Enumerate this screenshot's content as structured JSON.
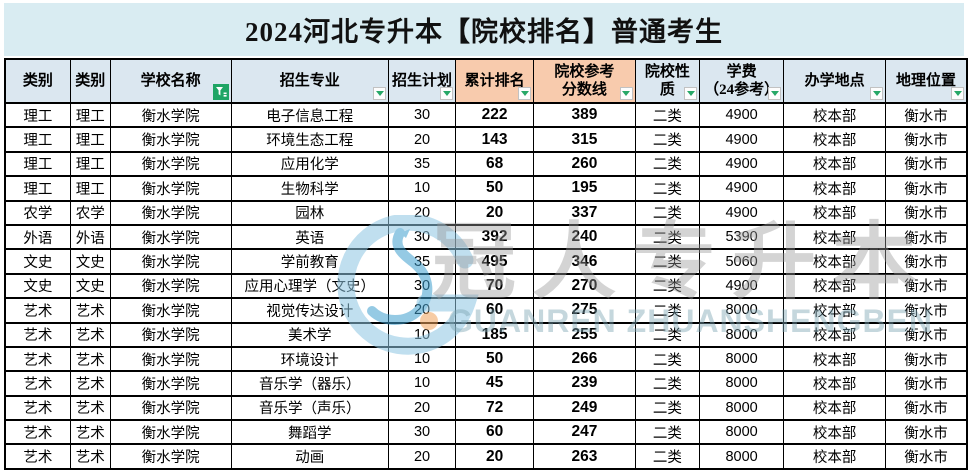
{
  "title": "2024河北专升本【院校排名】普通考生",
  "table": {
    "columns": [
      {
        "label": "类别",
        "accent": "blue",
        "filter": "none"
      },
      {
        "label": "类别",
        "accent": "blue",
        "filter": "none"
      },
      {
        "label": "学校名称",
        "accent": "blue",
        "filter": "funnel"
      },
      {
        "label": "招生专业",
        "accent": "blue",
        "filter": "arrow"
      },
      {
        "label": "招生计划",
        "accent": "blue",
        "filter": "arrow"
      },
      {
        "label": "累计排名",
        "accent": "orange",
        "filter": "arrow"
      },
      {
        "label": "院校参考\n分数线",
        "accent": "orange",
        "filter": "arrow"
      },
      {
        "label": "院校性\n质",
        "accent": "blue",
        "filter": "arrow"
      },
      {
        "label": "学费\n（24参考）",
        "accent": "blue",
        "filter": "arrow"
      },
      {
        "label": "办学地点",
        "accent": "blue",
        "filter": "arrow"
      },
      {
        "label": "地理位置",
        "accent": "blue",
        "filter": "arrow"
      }
    ],
    "rows": [
      [
        "理工",
        "理工",
        "衡水学院",
        "电子信息工程",
        "30",
        "222",
        "389",
        "二类",
        "4900",
        "校本部",
        "衡水市"
      ],
      [
        "理工",
        "理工",
        "衡水学院",
        "环境生态工程",
        "20",
        "143",
        "315",
        "二类",
        "4900",
        "校本部",
        "衡水市"
      ],
      [
        "理工",
        "理工",
        "衡水学院",
        "应用化学",
        "35",
        "68",
        "260",
        "二类",
        "4900",
        "校本部",
        "衡水市"
      ],
      [
        "理工",
        "理工",
        "衡水学院",
        "生物科学",
        "10",
        "50",
        "195",
        "二类",
        "4900",
        "校本部",
        "衡水市"
      ],
      [
        "农学",
        "农学",
        "衡水学院",
        "园林",
        "20",
        "20",
        "337",
        "二类",
        "4900",
        "校本部",
        "衡水市"
      ],
      [
        "外语",
        "外语",
        "衡水学院",
        "英语",
        "30",
        "392",
        "240",
        "二类",
        "5390",
        "校本部",
        "衡水市"
      ],
      [
        "文史",
        "文史",
        "衡水学院",
        "学前教育",
        "35",
        "495",
        "346",
        "二类",
        "5060",
        "校本部",
        "衡水市"
      ],
      [
        "文史",
        "文史",
        "衡水学院",
        "应用心理学（文史）",
        "30",
        "70",
        "270",
        "二类",
        "4900",
        "校本部",
        "衡水市"
      ],
      [
        "艺术",
        "艺术",
        "衡水学院",
        "视觉传达设计",
        "20",
        "60",
        "275",
        "二类",
        "8000",
        "校本部",
        "衡水市"
      ],
      [
        "艺术",
        "艺术",
        "衡水学院",
        "美术学",
        "10",
        "185",
        "255",
        "二类",
        "8000",
        "校本部",
        "衡水市"
      ],
      [
        "艺术",
        "艺术",
        "衡水学院",
        "环境设计",
        "10",
        "50",
        "266",
        "二类",
        "8000",
        "校本部",
        "衡水市"
      ],
      [
        "艺术",
        "艺术",
        "衡水学院",
        "音乐学（器乐）",
        "10",
        "45",
        "239",
        "二类",
        "8000",
        "校本部",
        "衡水市"
      ],
      [
        "艺术",
        "艺术",
        "衡水学院",
        "音乐学（声乐）",
        "20",
        "72",
        "249",
        "二类",
        "8000",
        "校本部",
        "衡水市"
      ],
      [
        "艺术",
        "艺术",
        "衡水学院",
        "舞蹈学",
        "30",
        "60",
        "247",
        "二类",
        "8000",
        "校本部",
        "衡水市"
      ],
      [
        "艺术",
        "艺术",
        "衡水学院",
        "动画",
        "20",
        "20",
        "263",
        "二类",
        "8000",
        "校本部",
        "衡水市"
      ]
    ]
  },
  "watermark": {
    "cn_text": "冠人专升本",
    "en_text": "GUANREN ZHUANSHENGBEN"
  },
  "icons": {
    "filter_funnel_icon": "applied-filter-funnel",
    "filter_arrow_icon": "dropdown-triangle"
  },
  "colors": {
    "title_bg": "#d9ecf2",
    "header_blue": "#dbe7f0",
    "header_orange": "#f8cbad",
    "funnel_green": "#1fa565",
    "arrow_green": "#27a867",
    "border": "#000000"
  }
}
